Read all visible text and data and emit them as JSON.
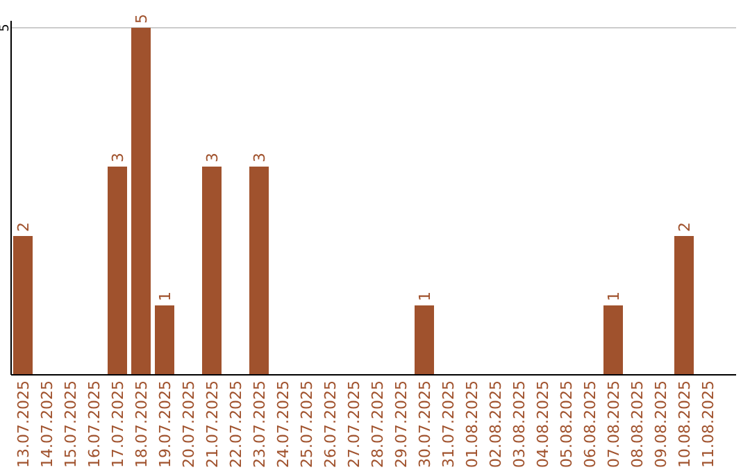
{
  "chart_data": {
    "type": "bar",
    "categories": [
      "13.07.2025",
      "14.07.2025",
      "15.07.2025",
      "16.07.2025",
      "17.07.2025",
      "18.07.2025",
      "19.07.2025",
      "20.07.2025",
      "21.07.2025",
      "22.07.2025",
      "23.07.2025",
      "24.07.2025",
      "25.07.2025",
      "26.07.2025",
      "27.07.2025",
      "28.07.2025",
      "29.07.2025",
      "30.07.2025",
      "31.07.2025",
      "01.08.2025",
      "02.08.2025",
      "03.08.2025",
      "04.08.2025",
      "05.08.2025",
      "06.08.2025",
      "07.08.2025",
      "08.08.2025",
      "09.08.2025",
      "10.08.2025",
      "11.08.2025"
    ],
    "values": [
      2,
      0,
      0,
      0,
      3,
      5,
      1,
      0,
      3,
      0,
      3,
      0,
      0,
      0,
      0,
      0,
      0,
      1,
      0,
      0,
      0,
      0,
      0,
      0,
      0,
      1,
      0,
      0,
      2,
      0
    ],
    "value_labels": [
      "2",
      null,
      null,
      null,
      "3",
      "5",
      "1",
      null,
      "3",
      null,
      "3",
      null,
      null,
      null,
      null,
      null,
      null,
      "1",
      null,
      null,
      null,
      null,
      null,
      null,
      null,
      "1",
      null,
      null,
      "2",
      null
    ],
    "color": "#a0522d",
    "ylim": [
      0,
      5.1
    ],
    "yticks": [
      5
    ],
    "grid": "y"
  }
}
